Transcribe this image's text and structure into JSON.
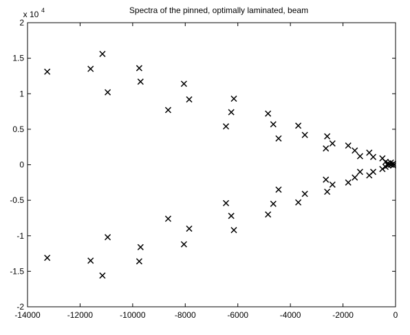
{
  "chart_data": {
    "type": "scatter",
    "title": "Spectra of the pinned, optimally laminated, beam",
    "xlabel": "",
    "ylabel": "",
    "y_multiplier_label": "x 10",
    "y_multiplier_exponent": "4",
    "xlim": [
      -14000,
      0
    ],
    "ylim": [
      -20000,
      20000
    ],
    "grid": false,
    "marker": "x",
    "x_ticks": [
      {
        "value": -14000,
        "label": "-14000"
      },
      {
        "value": -12000,
        "label": "-12000"
      },
      {
        "value": -10000,
        "label": "-10000"
      },
      {
        "value": -8000,
        "label": "-8000"
      },
      {
        "value": -6000,
        "label": "-6000"
      },
      {
        "value": -4000,
        "label": "-4000"
      },
      {
        "value": -2000,
        "label": "-2000"
      },
      {
        "value": 0,
        "label": "0"
      }
    ],
    "y_ticks": [
      {
        "value": 20000,
        "label": "2"
      },
      {
        "value": 15000,
        "label": "1.5"
      },
      {
        "value": 10000,
        "label": "1"
      },
      {
        "value": 5000,
        "label": "0.5"
      },
      {
        "value": 0,
        "label": "0"
      },
      {
        "value": -5000,
        "label": "-0.5"
      },
      {
        "value": -10000,
        "label": "-1"
      },
      {
        "value": -15000,
        "label": "-1.5"
      },
      {
        "value": -20000,
        "label": "-2"
      }
    ],
    "points": [
      {
        "x": -13250,
        "y": 13100
      },
      {
        "x": -13250,
        "y": -13100
      },
      {
        "x": -11600,
        "y": 13500
      },
      {
        "x": -11600,
        "y": -13500
      },
      {
        "x": -11150,
        "y": 15600
      },
      {
        "x": -11150,
        "y": -15600
      },
      {
        "x": -10950,
        "y": 10200
      },
      {
        "x": -10950,
        "y": -10200
      },
      {
        "x": -9750,
        "y": 13600
      },
      {
        "x": -9750,
        "y": -13600
      },
      {
        "x": -9700,
        "y": 11700
      },
      {
        "x": -9700,
        "y": -11600
      },
      {
        "x": -8650,
        "y": 7700
      },
      {
        "x": -8650,
        "y": -7600
      },
      {
        "x": -8050,
        "y": 11400
      },
      {
        "x": -8050,
        "y": -11200
      },
      {
        "x": -7850,
        "y": 9200
      },
      {
        "x": -7850,
        "y": -9000
      },
      {
        "x": -6450,
        "y": 5400
      },
      {
        "x": -6450,
        "y": -5400
      },
      {
        "x": -6250,
        "y": 7400
      },
      {
        "x": -6250,
        "y": -7200
      },
      {
        "x": -6150,
        "y": 9300
      },
      {
        "x": -6150,
        "y": -9200
      },
      {
        "x": -4850,
        "y": 7200
      },
      {
        "x": -4850,
        "y": -7000
      },
      {
        "x": -4650,
        "y": 5700
      },
      {
        "x": -4650,
        "y": -5500
      },
      {
        "x": -4450,
        "y": 3700
      },
      {
        "x": -4450,
        "y": -3500
      },
      {
        "x": -3700,
        "y": 5500
      },
      {
        "x": -3700,
        "y": -5300
      },
      {
        "x": -3450,
        "y": 4200
      },
      {
        "x": -3450,
        "y": -4100
      },
      {
        "x": -2600,
        "y": 4000
      },
      {
        "x": -2600,
        "y": -3800
      },
      {
        "x": -2650,
        "y": 2300
      },
      {
        "x": -2650,
        "y": -2100
      },
      {
        "x": -2400,
        "y": 3000
      },
      {
        "x": -2400,
        "y": -2800
      },
      {
        "x": -1800,
        "y": 2700
      },
      {
        "x": -1800,
        "y": -2500
      },
      {
        "x": -1550,
        "y": 2000
      },
      {
        "x": -1550,
        "y": -1800
      },
      {
        "x": -1350,
        "y": 1200
      },
      {
        "x": -1350,
        "y": -1000
      },
      {
        "x": -1000,
        "y": 1700
      },
      {
        "x": -1000,
        "y": -1500
      },
      {
        "x": -850,
        "y": 1100
      },
      {
        "x": -850,
        "y": -1000
      },
      {
        "x": -500,
        "y": 900
      },
      {
        "x": -500,
        "y": -600
      },
      {
        "x": -380,
        "y": 400
      },
      {
        "x": -380,
        "y": -300
      },
      {
        "x": -280,
        "y": 200
      },
      {
        "x": -280,
        "y": -100
      },
      {
        "x": -180,
        "y": 300
      },
      {
        "x": -180,
        "y": 0
      },
      {
        "x": -90,
        "y": 150
      },
      {
        "x": -90,
        "y": -100
      }
    ]
  }
}
